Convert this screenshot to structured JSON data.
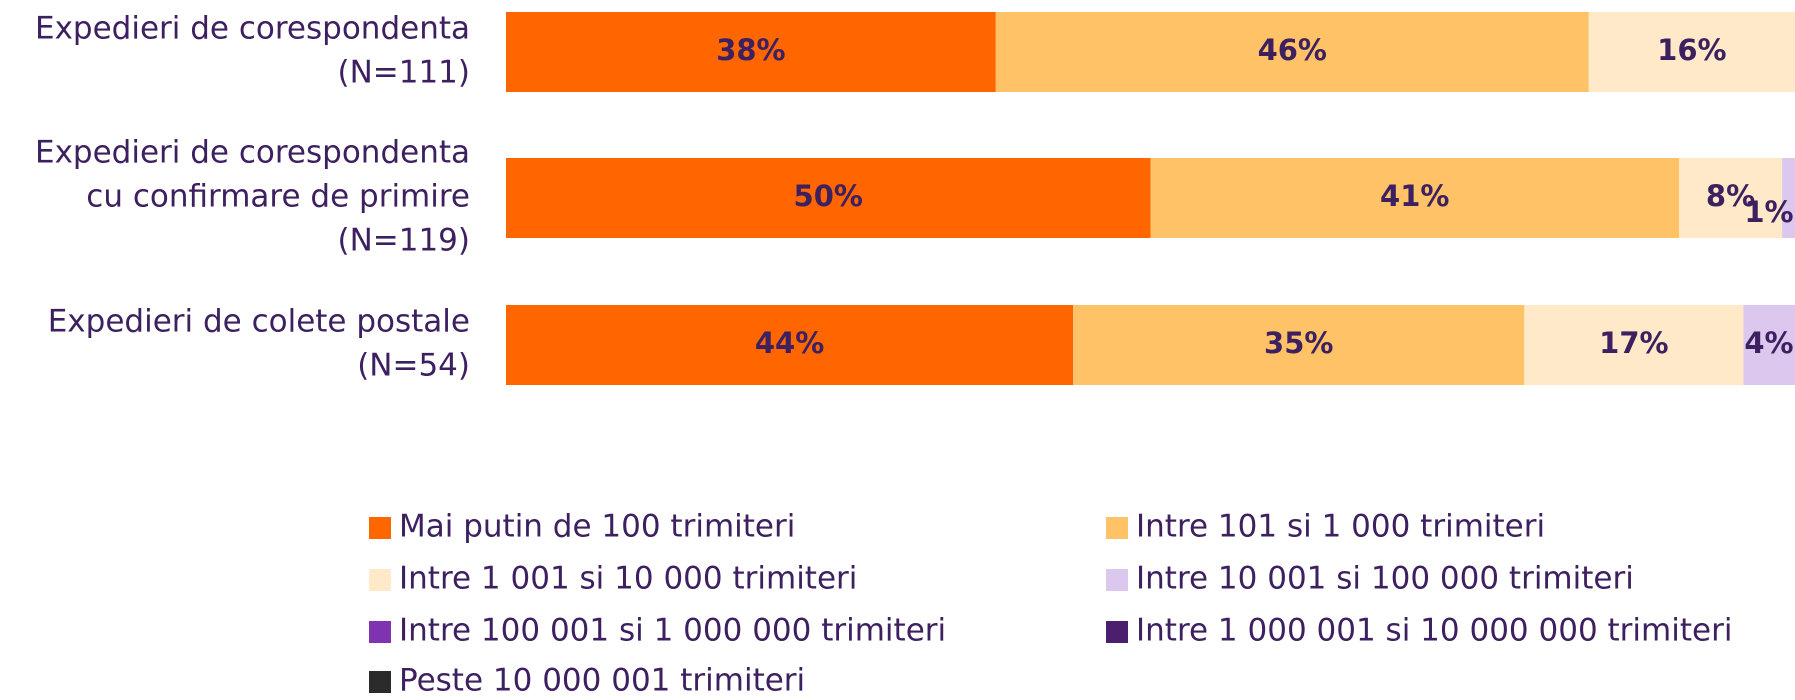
{
  "chart_data": {
    "type": "stacked-bar-horizontal",
    "categories": [
      [
        "Expedieri de corespondenta",
        "(N=111)"
      ],
      [
        "Expedieri de corespondenta",
        "cu confirmare de primire",
        "(N=119)"
      ],
      [
        "Expedieri de colete postale",
        "(N=54)"
      ]
    ],
    "xlim": [
      0,
      100
    ],
    "legend": "bottom",
    "series": [
      {
        "name": "Mai putin de 100 trimiteri",
        "color": "#ff6600",
        "values": [
          38,
          50,
          44
        ],
        "value_labels": [
          "38%",
          "50%",
          "44%"
        ]
      },
      {
        "name": "Intre 101 si 1 000 trimiteri",
        "color": "#ffc266",
        "values": [
          46,
          41,
          35
        ],
        "value_labels": [
          "46%",
          "41%",
          "35%"
        ]
      },
      {
        "name": "Intre 1 001 si 10 000 trimiteri",
        "color": "#ffe9c8",
        "values": [
          16,
          8,
          17
        ],
        "value_labels": [
          "16%",
          "8%",
          "17%"
        ]
      },
      {
        "name": "Intre 10 001 si 100 000 trimiteri",
        "color": "#dcc8ee",
        "values": [
          0,
          1,
          4
        ],
        "value_labels": [
          null,
          "1%",
          "4%"
        ]
      },
      {
        "name": "Intre 100 001 si 1 000 000 trimiteri",
        "color": "#8033b0",
        "values": [
          0,
          0,
          0
        ],
        "value_labels": [
          null,
          null,
          null
        ]
      },
      {
        "name": "Intre 1 000 001 si 10 000 000 trimiteri",
        "color": "#4b1f6e",
        "values": [
          0,
          0,
          0
        ],
        "value_labels": [
          null,
          null,
          null
        ]
      },
      {
        "name": "Peste 10 000 001 trimiteri",
        "color": "#2b2b2b",
        "values": [
          0,
          0,
          0
        ],
        "value_labels": [
          null,
          null,
          null
        ]
      }
    ]
  }
}
